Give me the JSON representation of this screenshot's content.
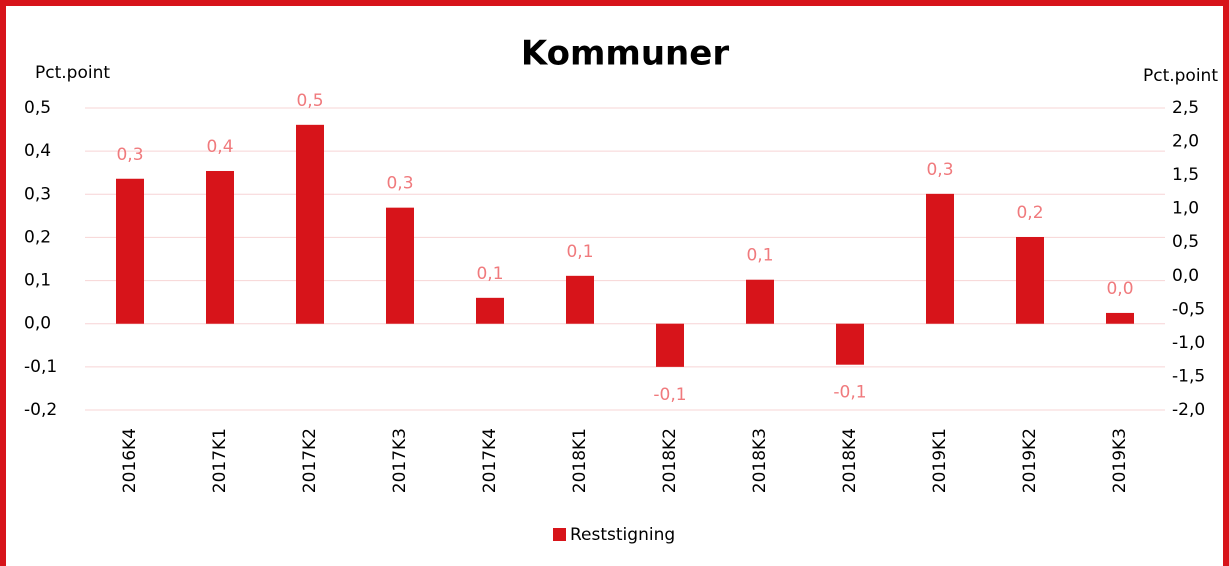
{
  "chart_data": {
    "type": "bar",
    "title": "Kommuner",
    "y_label": "Pct.point",
    "y2_label": "Pct.point",
    "categories": [
      "2016K4",
      "2017K1",
      "2017K2",
      "2017K3",
      "2017K4",
      "2018K1",
      "2018K2",
      "2018K3",
      "2018K4",
      "2019K1",
      "2019K2",
      "2019K3"
    ],
    "series": [
      {
        "name": "Reststigning",
        "color": "#d7141a",
        "values": [
          0.336,
          0.354,
          0.461,
          0.269,
          0.06,
          0.111,
          -0.1,
          0.102,
          -0.095,
          0.301,
          0.201,
          0.025
        ],
        "value_labels": [
          "0,3",
          "0,4",
          "0,5",
          "0,3",
          "0,1",
          "0,1",
          "-0,1",
          "0,1",
          "-0,1",
          "0,3",
          "0,2",
          "0,0"
        ]
      }
    ],
    "value_label_color": "#f07a7d",
    "ylim": [
      -0.2,
      0.5
    ],
    "yticks": [
      {
        "value": -0.2,
        "label": "-0,2"
      },
      {
        "value": -0.1,
        "label": "-0,1"
      },
      {
        "value": 0,
        "label": "0,0"
      },
      {
        "value": 0.1,
        "label": "0,1"
      },
      {
        "value": 0.2,
        "label": "0,2"
      },
      {
        "value": 0.3,
        "label": "0,3"
      },
      {
        "value": 0.4,
        "label": "0,4"
      },
      {
        "value": 0.5,
        "label": "0,5"
      }
    ],
    "y2lim": [
      -2,
      2.5
    ],
    "y2ticks": [
      {
        "value": -2,
        "label": "-2,0"
      },
      {
        "value": -1.5,
        "label": "-1,5"
      },
      {
        "value": -1,
        "label": "-1,0"
      },
      {
        "value": -0.5,
        "label": "-0,5"
      },
      {
        "value": 0,
        "label": "0,0"
      },
      {
        "value": 0.5,
        "label": "0,5"
      },
      {
        "value": 1,
        "label": "1,0"
      },
      {
        "value": 1.5,
        "label": "1,5"
      },
      {
        "value": 2,
        "label": "2,0"
      },
      {
        "value": 2.5,
        "label": "2,5"
      }
    ],
    "grid": true,
    "legend": "bottom"
  }
}
